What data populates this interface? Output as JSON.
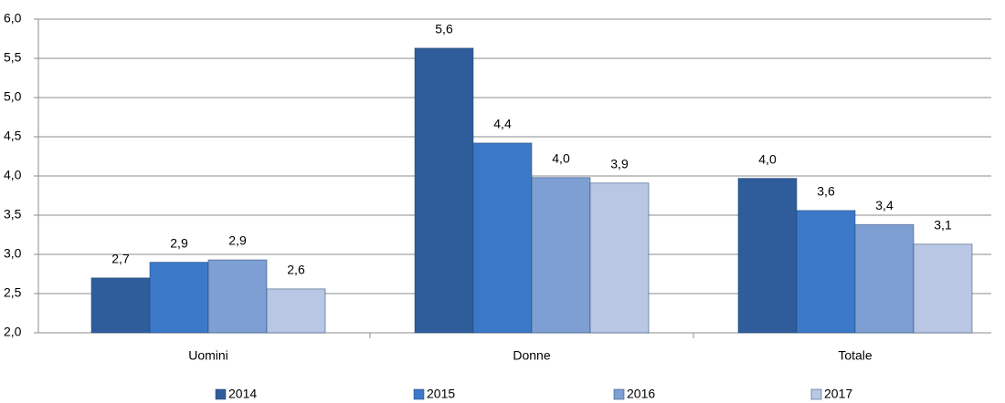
{
  "chart_data": {
    "type": "bar",
    "categories": [
      "Uomini",
      "Donne",
      "Totale"
    ],
    "series": [
      {
        "name": "2014",
        "color": "#2f5d9b",
        "values": [
          2.7,
          5.63,
          3.97
        ],
        "value_labels": [
          "2,7",
          "5,6",
          "4,0"
        ]
      },
      {
        "name": "2015",
        "color": "#3b79c8",
        "values": [
          2.9,
          4.42,
          3.56
        ],
        "value_labels": [
          "2,9",
          "4,4",
          "3,6"
        ]
      },
      {
        "name": "2016",
        "color": "#7e9fd3",
        "values": [
          2.93,
          3.98,
          3.38
        ],
        "value_labels": [
          "2,9",
          "4,0",
          "3,4"
        ]
      },
      {
        "name": "2017",
        "color": "#b9c7e4",
        "values": [
          2.56,
          3.91,
          3.13
        ],
        "value_labels": [
          "2,6",
          "3,9",
          "3,1"
        ]
      }
    ],
    "ylim": [
      2,
      6
    ],
    "yticks": [
      {
        "value": 2,
        "label": "2,0"
      },
      {
        "value": 2.5,
        "label": "2,5"
      },
      {
        "value": 3,
        "label": "3,0"
      },
      {
        "value": 3.5,
        "label": "3,5"
      },
      {
        "value": 4,
        "label": "4,0"
      },
      {
        "value": 4.5,
        "label": "4,5"
      },
      {
        "value": 5,
        "label": "5,0"
      },
      {
        "value": 5.5,
        "label": "5,5"
      },
      {
        "value": 6,
        "label": "6,0"
      }
    ],
    "grid": true,
    "legend": "bottom"
  }
}
